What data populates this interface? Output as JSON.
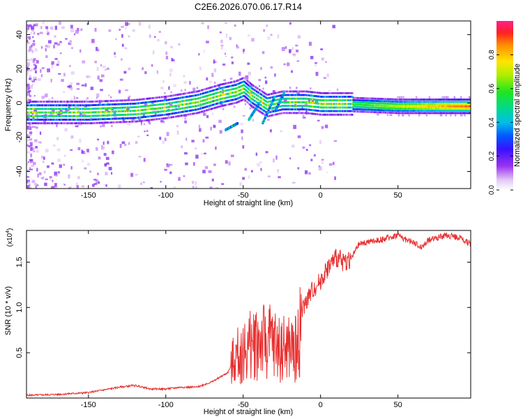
{
  "chart_data": [
    {
      "type": "heatmap",
      "title": "C2E6.2026.070.06.17.R14",
      "xlabel": "Height of straight line (km)",
      "ylabel": "Frequency (Hz)",
      "xlim": [
        -190,
        97
      ],
      "ylim": [
        -50,
        48
      ],
      "xticks": [
        -150,
        -100,
        -50,
        0,
        50
      ],
      "yticks": [
        -40,
        -20,
        0,
        20,
        40
      ],
      "ridge": {
        "x": [
          -190,
          -150,
          -120,
          -100,
          -80,
          -65,
          -55,
          -50,
          -45,
          -35,
          -25,
          -20,
          -10,
          0,
          10,
          20,
          50,
          97
        ],
        "y": [
          -6,
          -6,
          -5,
          -3,
          0,
          4,
          6,
          8,
          4,
          -2,
          0,
          0,
          0,
          -1,
          -1,
          -1,
          -2,
          -2
        ]
      },
      "colorbar": {
        "label": "Normalized spectral amplitude",
        "ticks": [
          "0.0",
          "0.2",
          "0.4",
          "0.6",
          "0.8"
        ],
        "tick_values": [
          0.0,
          0.2,
          0.4,
          0.6,
          0.8
        ],
        "range": [
          0,
          1
        ]
      }
    },
    {
      "type": "line",
      "xlabel": "Height of straight line (km)",
      "ylabel": "SNR (10 * v/v)",
      "scale_note_base": "(x10",
      "scale_note_exp": "4",
      "scale_note_close": ")",
      "xlim": [
        -190,
        97
      ],
      "ylim": [
        0,
        1.85
      ],
      "xticks": [
        -150,
        -100,
        -50,
        0,
        50
      ],
      "yticks": [
        0.5,
        1.0,
        1.5
      ],
      "ytick_labels": [
        "0.5",
        "1.0",
        "1.5"
      ],
      "color": "#e83030",
      "series": [
        {
          "name": "SNR",
          "x": [
            -190,
            -170,
            -150,
            -130,
            -120,
            -110,
            -100,
            -90,
            -80,
            -70,
            -60,
            -55,
            -50,
            -45,
            -40,
            -35,
            -30,
            -25,
            -20,
            -15,
            -12,
            -10,
            -5,
            0,
            5,
            10,
            15,
            20,
            25,
            30,
            40,
            50,
            55,
            60,
            65,
            70,
            75,
            80,
            85,
            90,
            95,
            97
          ],
          "y": [
            0.03,
            0.04,
            0.06,
            0.12,
            0.14,
            0.1,
            0.1,
            0.12,
            0.12,
            0.18,
            0.28,
            0.45,
            0.5,
            0.58,
            0.65,
            0.62,
            0.6,
            0.55,
            0.55,
            0.55,
            0.95,
            1.05,
            1.2,
            1.3,
            1.45,
            1.55,
            1.5,
            1.55,
            1.7,
            1.72,
            1.75,
            1.8,
            1.75,
            1.72,
            1.66,
            1.75,
            1.77,
            1.79,
            1.79,
            1.77,
            1.72,
            1.7
          ]
        }
      ]
    }
  ]
}
